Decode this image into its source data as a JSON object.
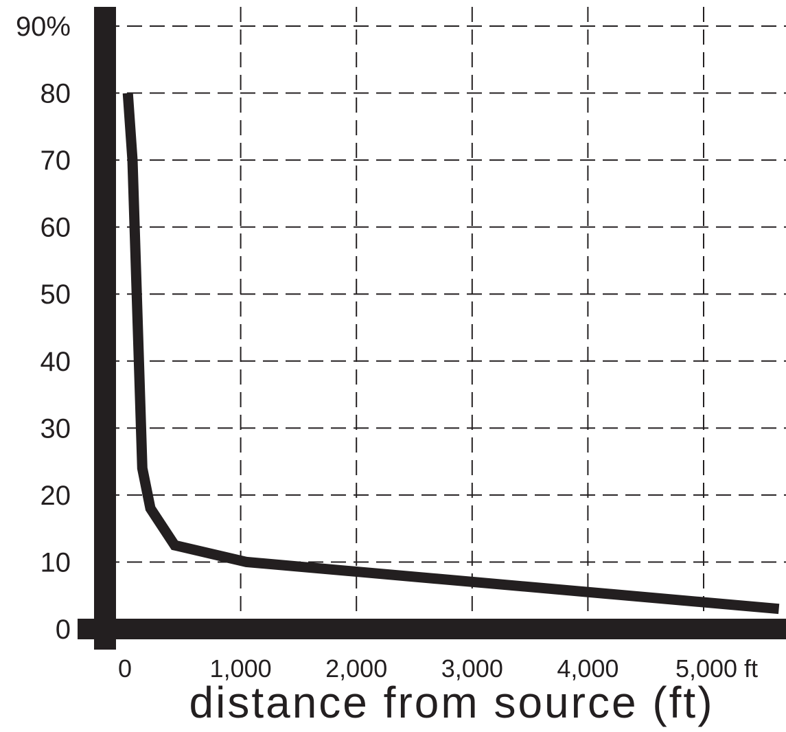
{
  "chart_data": {
    "type": "line",
    "title": "",
    "xlabel": "distance from source (ft)",
    "ylabel": "",
    "xlim": [
      -300,
      5700
    ],
    "ylim": [
      -4,
      94
    ],
    "grid": true,
    "x_tick_values": [
      0,
      1000,
      2000,
      3000,
      4000,
      5000
    ],
    "x_tick_labels": [
      "0",
      "1,000",
      "2,000",
      "3,000",
      "4,000",
      "5,000 ft"
    ],
    "y_tick_values": [
      0,
      10,
      20,
      30,
      40,
      50,
      60,
      70,
      80,
      90
    ],
    "y_tick_labels": [
      "0",
      "10",
      "20",
      "30",
      "40",
      "50",
      "60",
      "70",
      "80",
      "90%"
    ],
    "series": [
      {
        "x": [
          25,
          65,
          150,
          220,
          430,
          1050,
          5650
        ],
        "y": [
          80,
          70,
          24,
          18,
          12.5,
          10,
          3
        ]
      }
    ],
    "colors": {
      "line": "#231f20",
      "axis": "#231f20",
      "grid": "#231f20",
      "text": "#231f20"
    }
  }
}
